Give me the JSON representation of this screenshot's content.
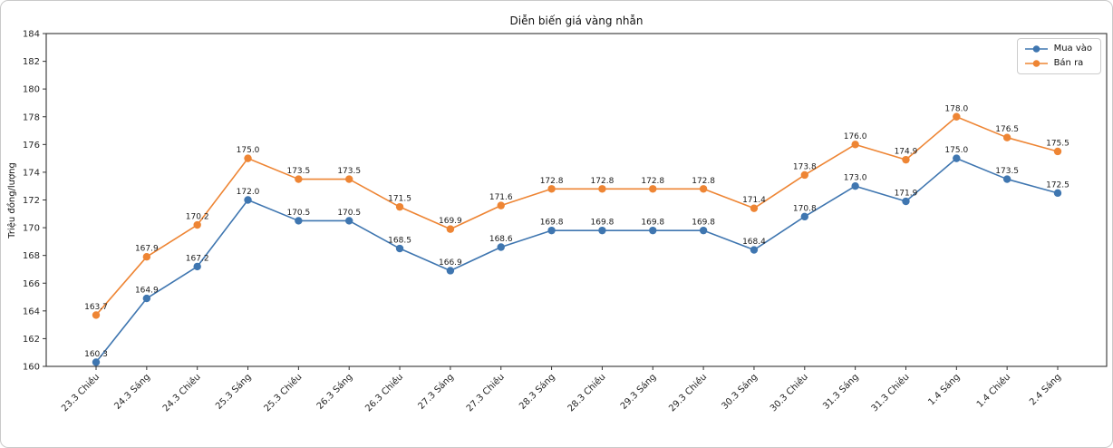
{
  "figure": {
    "background": "#ffffff",
    "border_color": "#c9c9c9",
    "spine_color": "#333333",
    "tick_label_color": "#262626",
    "data_label_color": "#1a1a1a"
  },
  "legend": {
    "position": "upper right",
    "items": [
      {
        "label": "Mua vào",
        "color": "#3f76b0"
      },
      {
        "label": "Bán ra",
        "color": "#ee8534"
      }
    ]
  },
  "chart_data": {
    "type": "line",
    "title": "Diễn biến giá vàng nhẫn",
    "xlabel": "",
    "ylabel": "Triệu đồng/lượng",
    "ylim": [
      160,
      184
    ],
    "yticks": [
      160,
      162,
      164,
      166,
      168,
      170,
      172,
      174,
      176,
      178,
      180,
      182,
      184
    ],
    "grid": false,
    "legend_position": "upper right",
    "marker": "o",
    "data_labels": true,
    "label_format": ".1f",
    "categories": [
      "23.3 Chiều",
      "24.3 Sáng",
      "24.3 Chiều",
      "25.3 Sáng",
      "25.3 Chiều",
      "26.3 Sáng",
      "26.3 Chiều",
      "27.3 Sáng",
      "27.3 Chiều",
      "28.3 Sáng",
      "28.3 Chiều",
      "29.3 Sáng",
      "29.3 Chiều",
      "30.3 Sáng",
      "30.3 Chiều",
      "31.3 Sáng",
      "31.3 Chiều",
      "1.4 Sáng",
      "1.4 Chiều",
      "2.4 Sáng"
    ],
    "series": [
      {
        "name": "Mua vào",
        "color": "#3f76b0",
        "values": [
          160.3,
          164.9,
          167.2,
          172.0,
          170.5,
          170.5,
          168.5,
          166.9,
          168.6,
          169.8,
          169.8,
          169.8,
          169.8,
          168.4,
          170.8,
          173.0,
          171.9,
          175.0,
          173.5,
          172.5
        ]
      },
      {
        "name": "Bán ra",
        "color": "#ee8534",
        "values": [
          163.7,
          167.9,
          170.2,
          175.0,
          173.5,
          173.5,
          171.5,
          169.9,
          171.6,
          172.8,
          172.8,
          172.8,
          172.8,
          171.4,
          173.8,
          176.0,
          174.9,
          178.0,
          176.5,
          175.5
        ]
      }
    ]
  }
}
